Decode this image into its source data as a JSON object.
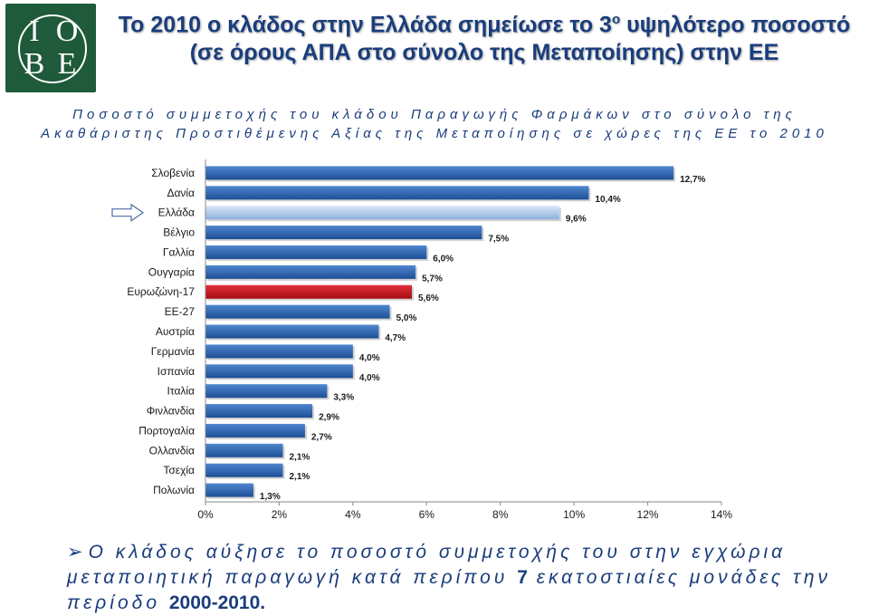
{
  "logo": {
    "letters": [
      "I",
      "O",
      "B",
      "E"
    ],
    "icon": "iobe-logo-icon",
    "color": "#1f5a3a"
  },
  "header": {
    "title_part1": "Το 2010 ο κλάδος στην Ελλάδα σημείωσε το 3",
    "title_sup": "ο",
    "title_part2": "υψηλότερο ποσοστό (σε όρους ΑΠΑ στο σύνολο της Μεταποίησης) στην ΕΕ"
  },
  "chart_data": {
    "type": "bar",
    "orientation": "horizontal",
    "title": "Ποσοστό συμμετοχής του κλάδου Παραγωγής Φαρμάκων στο σύνολο της Ακαθάριστης Προστιθέμενης Αξίας της Μεταποίησης σε χώρες της ΕΕ το 2010",
    "title_year": "2010",
    "categories": [
      "Σλοβενία",
      "Δανία",
      "Ελλάδα",
      "Βέλγιο",
      "Γαλλία",
      "Ουγγαρία",
      "Ευρωζώνη-17",
      "ΕΕ-27",
      "Αυστρία",
      "Γερμανία",
      "Ισπανία",
      "Ιταλία",
      "Φινλανδία",
      "Πορτογαλία",
      "Ολλανδία",
      "Τσεχία",
      "Πολωνία"
    ],
    "values": [
      12.7,
      10.4,
      9.6,
      7.5,
      6.0,
      5.7,
      5.6,
      5.0,
      4.7,
      4.0,
      4.0,
      3.3,
      2.9,
      2.7,
      2.1,
      2.1,
      1.3
    ],
    "value_labels": [
      "12,7%",
      "10,4%",
      "9,6%",
      "7,5%",
      "6,0%",
      "5,7%",
      "5,6%",
      "5,0%",
      "4,7%",
      "4,0%",
      "4,0%",
      "3,3%",
      "2,9%",
      "2,7%",
      "2,1%",
      "2,1%",
      "1,3%"
    ],
    "xlim": [
      0,
      14
    ],
    "xticks": [
      "0%",
      "2%",
      "4%",
      "6%",
      "8%",
      "10%",
      "12%",
      "14%"
    ],
    "highlight": {
      "Ελλάδα": "#a9c4e8",
      "Ευρωζώνη-17": "#c8141e"
    },
    "bar_color": "#2a5ea8",
    "pointer_icon": "arrow-right-icon",
    "pointer_target": "Ελλάδα",
    "grid": false,
    "legend": "none"
  },
  "bullet": {
    "icon": "bullet-arrow-icon",
    "text_main": "Ο κλάδος αύξησε το ποσοστό συμμετοχής του στην εγχώρια μεταποιητική παραγωγή κατά περίπου ",
    "number": "7",
    "text_mid": " εκατοστιαίες μονάδες την περίοδο ",
    "period": "2000-2010."
  }
}
